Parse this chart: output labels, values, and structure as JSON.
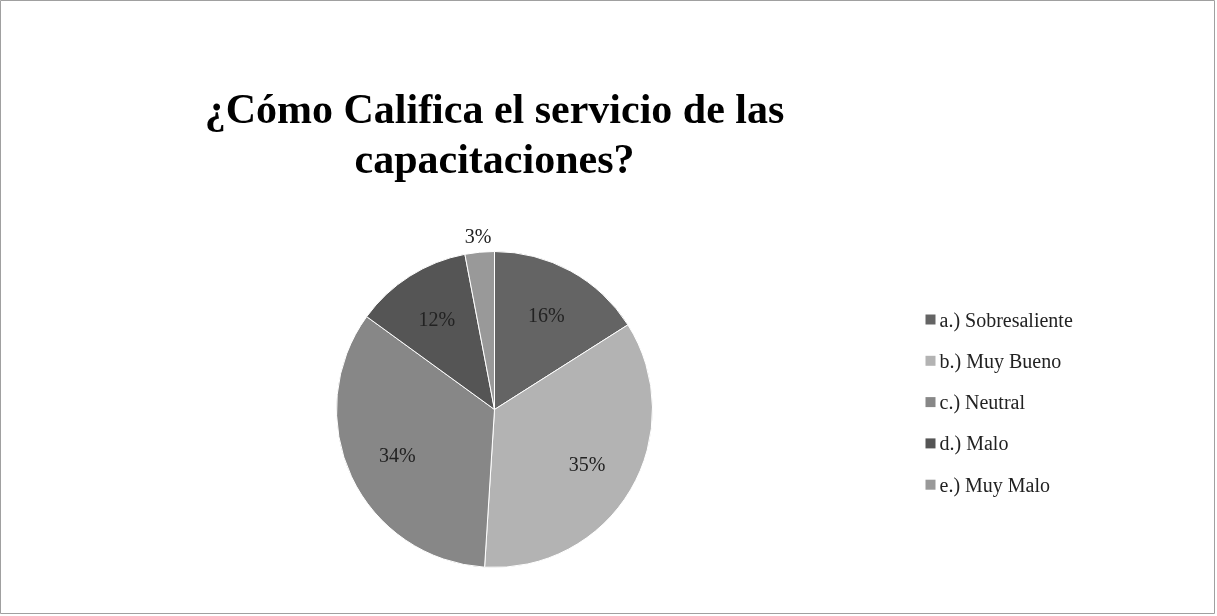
{
  "chart_data": {
    "type": "pie",
    "title": "¿Cómo Califica el servicio de las capacitaciones?",
    "categories": [
      "a.) Sobresaliente",
      "b.) Muy Bueno",
      "c.) Neutral",
      "d.) Malo",
      "e.) Muy Malo"
    ],
    "values": [
      16,
      35,
      34,
      12,
      3
    ],
    "colors": [
      "#646464",
      "#b3b3b3",
      "#878787",
      "#555555",
      "#999999"
    ],
    "value_labels": [
      "16%",
      "35%",
      "34%",
      "12%",
      "3%"
    ],
    "legend": "right"
  }
}
